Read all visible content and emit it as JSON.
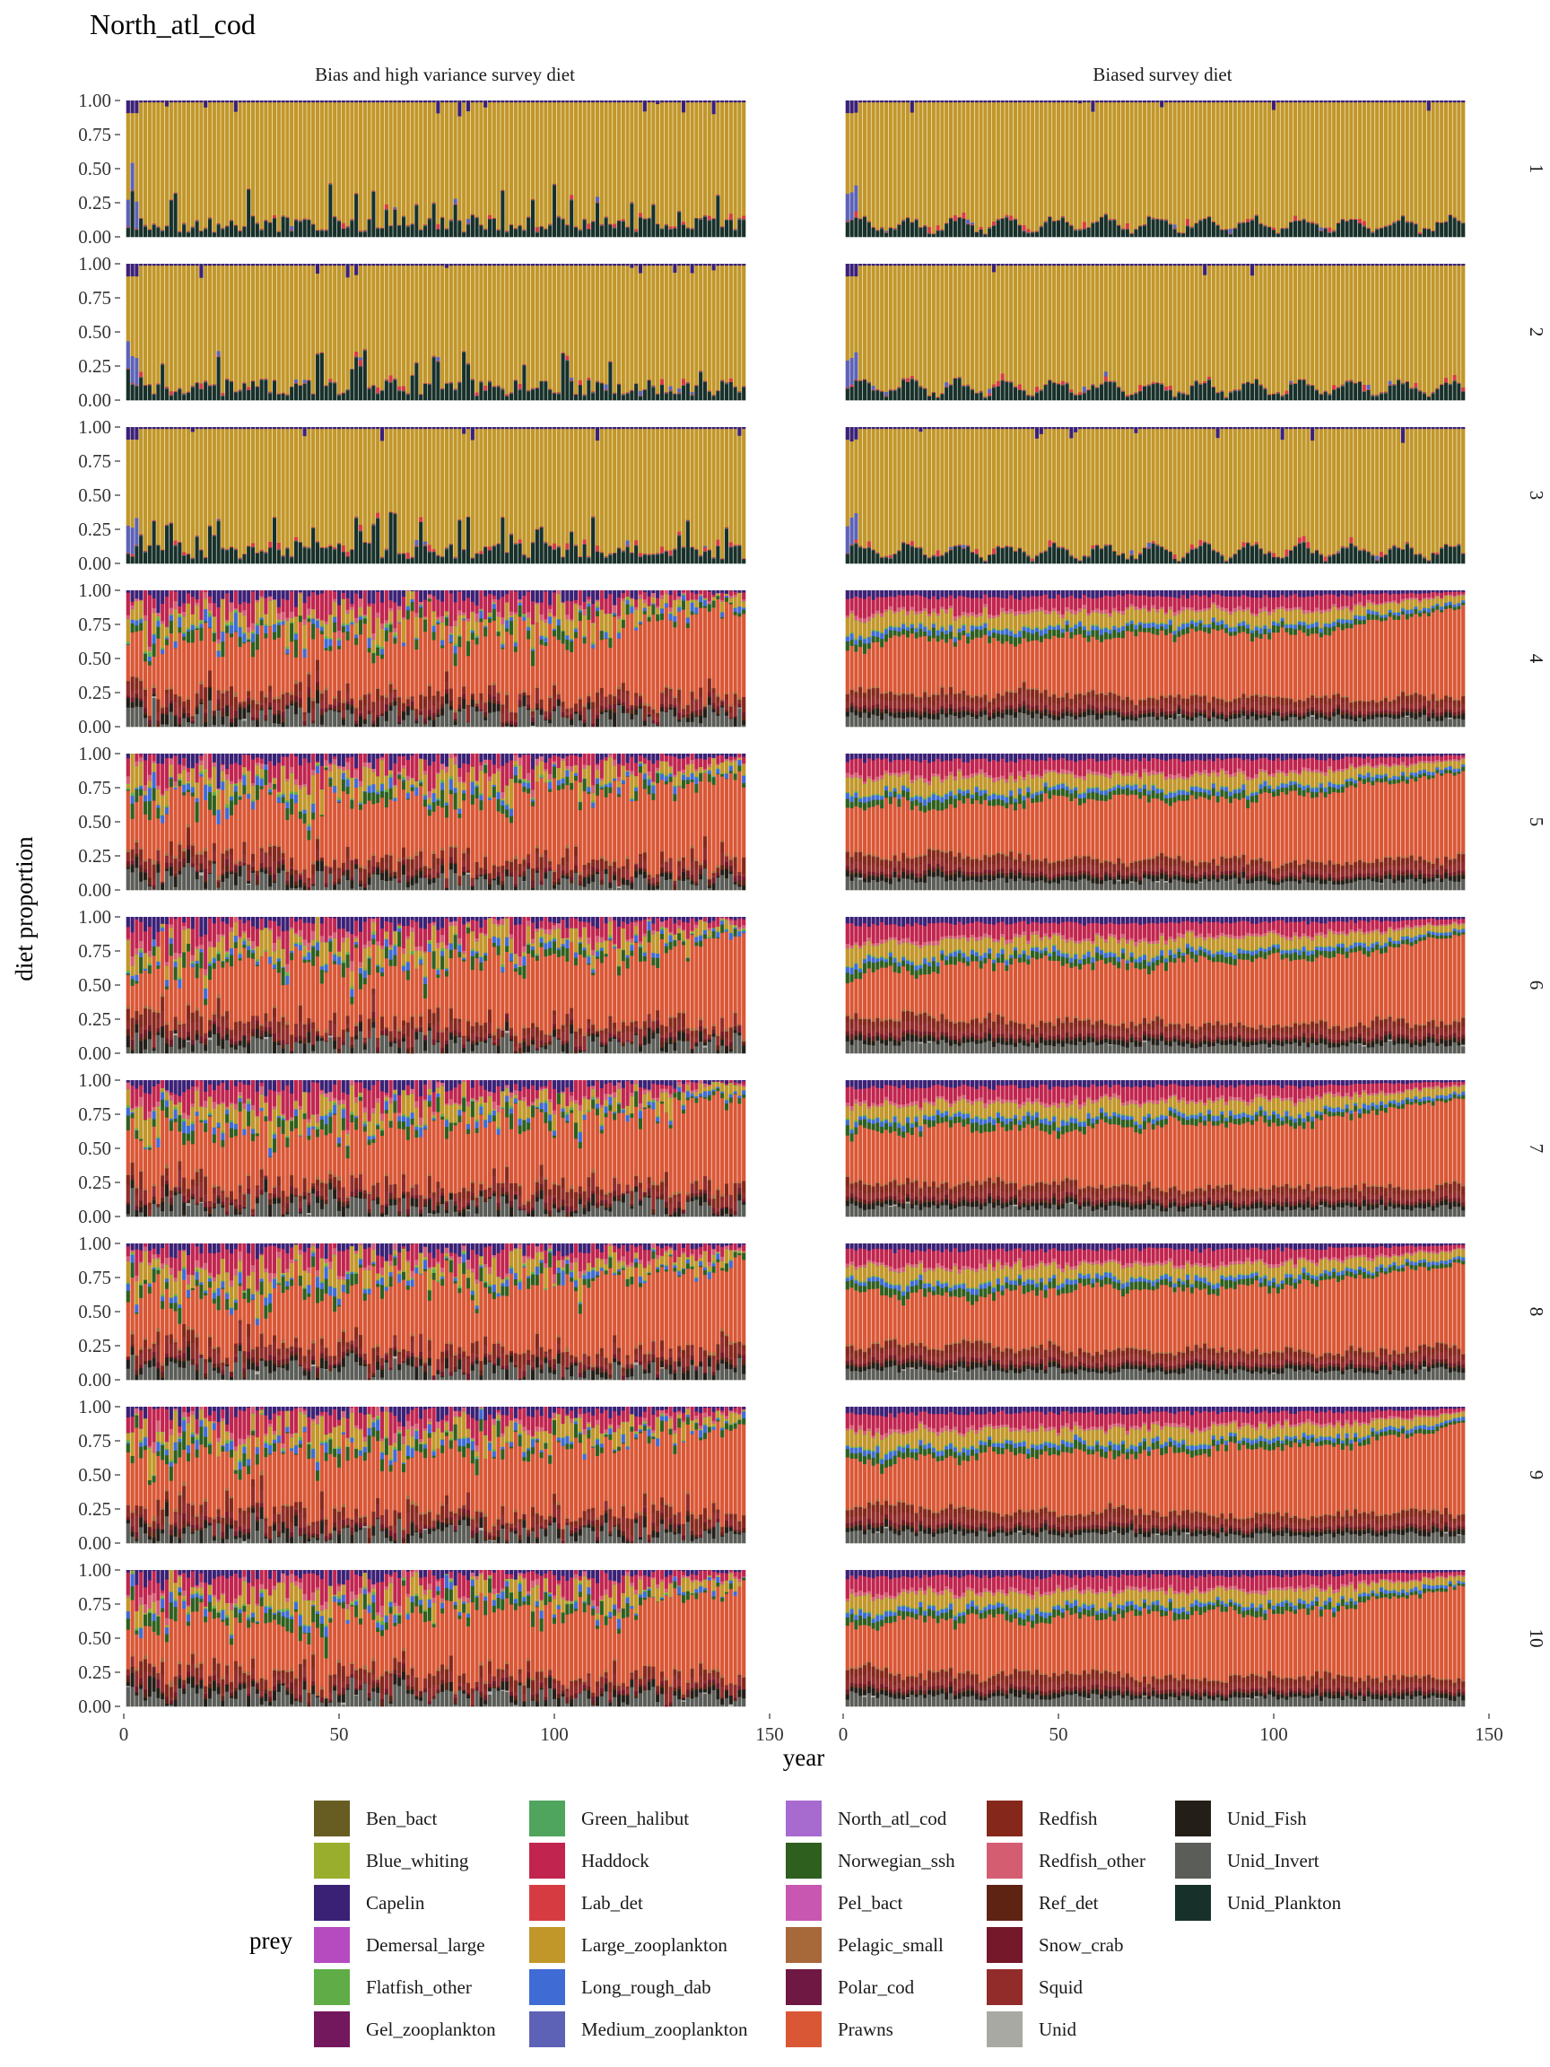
{
  "chart_data": {
    "type": "bar",
    "title": "North_atl_cod",
    "xlabel": "year",
    "ylabel": "diet proportion",
    "xlim": [
      0,
      150
    ],
    "ylim": [
      0,
      1
    ],
    "x_ticks": [
      "0",
      "50",
      "100",
      "150"
    ],
    "y_ticks": [
      "0.00",
      "0.25",
      "0.50",
      "0.75",
      "1.00"
    ],
    "n_years": 144,
    "facet_columns": [
      "Bias and high variance survey diet",
      "Biased survey diet"
    ],
    "facet_rows": [
      "1",
      "2",
      "3",
      "4",
      "5",
      "6",
      "7",
      "8",
      "9",
      "10"
    ],
    "legend": {
      "title": "prey",
      "position": "bottom",
      "entries": [
        {
          "name": "Ben_bact",
          "color": "#675D22"
        },
        {
          "name": "Blue_whiting",
          "color": "#99AE2D"
        },
        {
          "name": "Capelin",
          "color": "#3B2176"
        },
        {
          "name": "Demersal_large",
          "color": "#B64BC0"
        },
        {
          "name": "Flatfish_other",
          "color": "#60AC46"
        },
        {
          "name": "Gel_zooplankton",
          "color": "#74185E"
        },
        {
          "name": "Green_halibut",
          "color": "#4FA45E"
        },
        {
          "name": "Haddock",
          "color": "#C1254F"
        },
        {
          "name": "Lab_det",
          "color": "#D73B42"
        },
        {
          "name": "Large_zooplankton",
          "color": "#C2972A"
        },
        {
          "name": "Long_rough_dab",
          "color": "#3F6BD5"
        },
        {
          "name": "Medium_zooplankton",
          "color": "#5D62B6"
        },
        {
          "name": "North_atl_cod",
          "color": "#A76ACF"
        },
        {
          "name": "Norwegian_ssh",
          "color": "#2F5F1E"
        },
        {
          "name": "Pel_bact",
          "color": "#C757B0"
        },
        {
          "name": "Pelagic_small",
          "color": "#A7683A"
        },
        {
          "name": "Polar_cod",
          "color": "#6E1843"
        },
        {
          "name": "Prawns",
          "color": "#DA5736"
        },
        {
          "name": "Redfish",
          "color": "#85281B"
        },
        {
          "name": "Redfish_other",
          "color": "#D45D72"
        },
        {
          "name": "Ref_det",
          "color": "#5E2313"
        },
        {
          "name": "Snow_crab",
          "color": "#74182A"
        },
        {
          "name": "Squid",
          "color": "#922C2B"
        },
        {
          "name": "Unid",
          "color": "#A8A9A3"
        },
        {
          "name": "Unid_Fish",
          "color": "#231F18"
        },
        {
          "name": "Unid_Invert",
          "color": "#5B5E58"
        },
        {
          "name": "Unid_Plankton",
          "color": "#18302A"
        }
      ]
    },
    "panel_profiles": [
      {
        "rows": "1-3",
        "composition": {
          "Unid_Plankton": 0.12,
          "Lab_det": 0.02,
          "Large_zooplankton": 0.84,
          "Capelin": 0.02
        }
      },
      {
        "rows": "4-10",
        "composition": {
          "Unid_Invert": 0.06,
          "Unid_Fish": 0.05,
          "Squid": 0.05,
          "Redfish": 0.04,
          "Prawns": 0.48,
          "Norwegian_ssh": 0.05,
          "Long_rough_dab": 0.03,
          "Large_zooplankton": 0.09,
          "Haddock": 0.08,
          "Redfish_other": 0.03,
          "Capelin": 0.04
        }
      }
    ]
  }
}
